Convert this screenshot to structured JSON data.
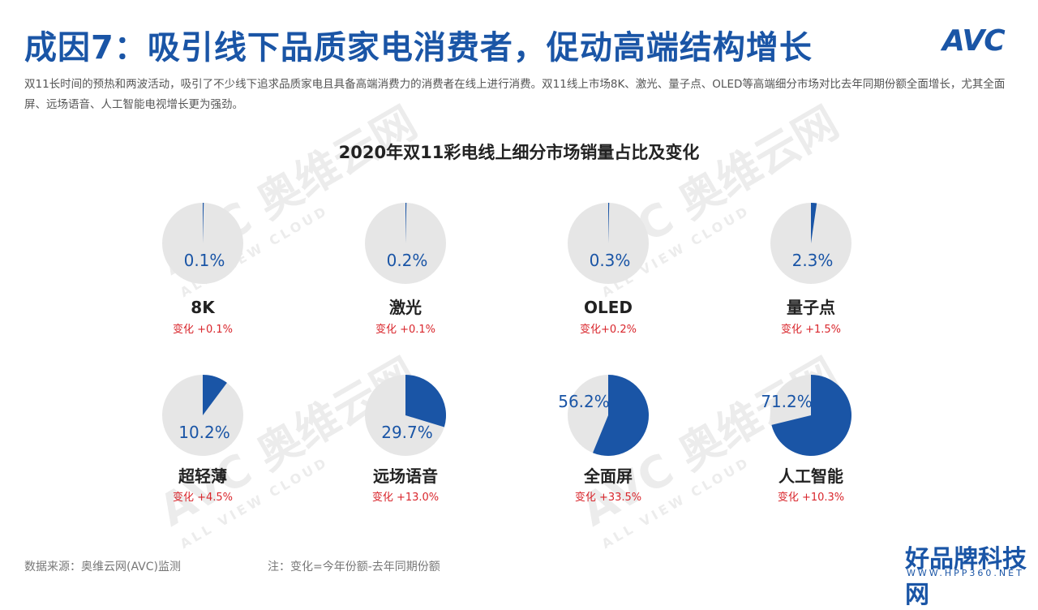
{
  "header": {
    "title": "成因7：吸引线下品质家电消费者，促动高端结构增长",
    "logo_text": "AVC",
    "description": "双11长时间的预热和两波活动，吸引了不少线下追求品质家电且具备高端消费力的消费者在线上进行消费。双11线上市场8K、激光、量子点、OLED等高端细分市场对比去年同期份额全面增长，尤其全面屏、远场语音、人工智能电视增长更为强劲。"
  },
  "watermark": {
    "cn": "奥维云网",
    "en": "ALL VIEW CLOUD",
    "logo": "AVC"
  },
  "colors": {
    "accent": "#1a55a6",
    "pie_bg": "#e6e6e6",
    "change": "#d9262c",
    "text": "#222222"
  },
  "chart_data": {
    "type": "pie",
    "title": "2020年双11彩电线上细分市场销量占比及变化",
    "items": [
      {
        "name": "8K",
        "share": 0.1,
        "share_label": "0.1%",
        "change": "变化 +0.1%"
      },
      {
        "name": "激光",
        "share": 0.2,
        "share_label": "0.2%",
        "change": "变化 +0.1%"
      },
      {
        "name": "OLED",
        "share": 0.3,
        "share_label": "0.3%",
        "change": "变化+0.2%"
      },
      {
        "name": "量子点",
        "share": 2.3,
        "share_label": "2.3%",
        "change": "变化 +1.5%"
      },
      {
        "name": "超轻薄",
        "share": 10.2,
        "share_label": "10.2%",
        "change": "变化 +4.5%"
      },
      {
        "name": "远场语音",
        "share": 29.7,
        "share_label": "29.7%",
        "change": "变化 +13.0%"
      },
      {
        "name": "全面屏",
        "share": 56.2,
        "share_label": "56.2%",
        "change": "变化 +33.5%"
      },
      {
        "name": "人工智能",
        "share": 71.2,
        "share_label": "71.2%",
        "change": "变化 +10.3%"
      }
    ]
  },
  "footer": {
    "source": "数据来源：奥维云网(AVC)监测",
    "note": "注：变化=今年份额-去年同期份额",
    "brand": "好品牌科技网",
    "brand_url": "WWW.HPP360.NET"
  }
}
